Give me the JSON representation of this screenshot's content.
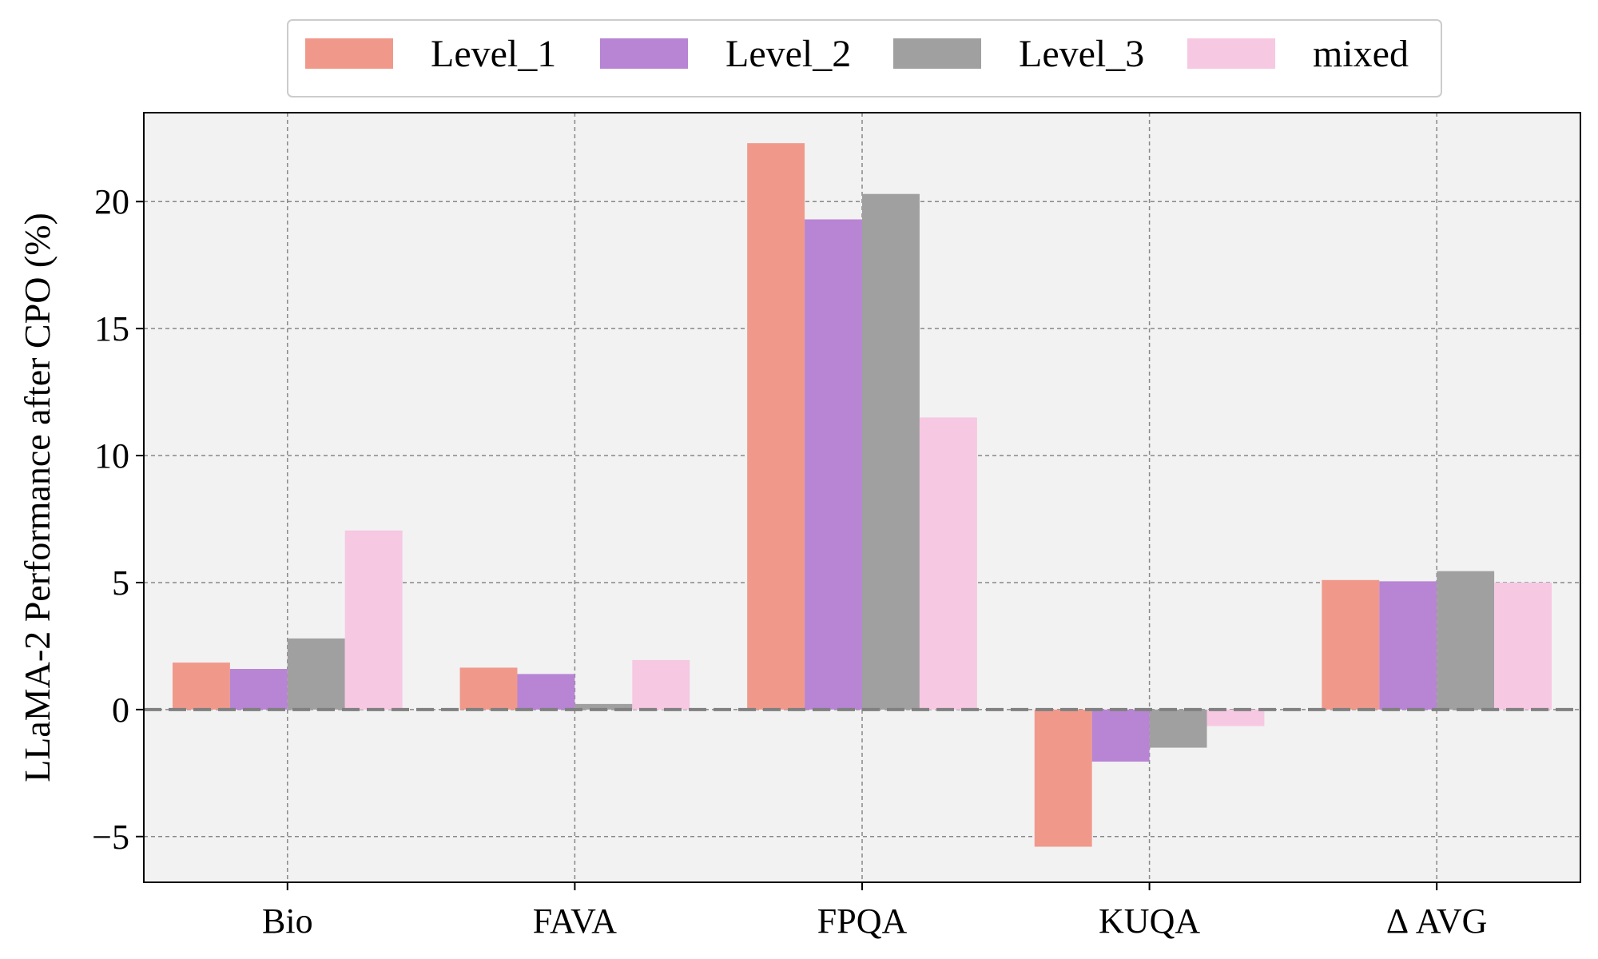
{
  "chart_data": {
    "type": "bar",
    "title": "",
    "xlabel": "",
    "ylabel": "LLaMA-2 Performance after CPO (%)",
    "categories": [
      "Bio",
      "FAVA",
      "FPQA",
      "KUQA",
      "Δ AVG"
    ],
    "ylim": [
      -6.8,
      23.5
    ],
    "yticks": [
      -5,
      0,
      5,
      10,
      15,
      20
    ],
    "ytick_labels": [
      "−5",
      "0",
      "5",
      "10",
      "15",
      "20"
    ],
    "grid": true,
    "zero_line": true,
    "legend_position": "top-center",
    "series": [
      {
        "name": "Level_1",
        "color": "#F0998B",
        "values": [
          1.85,
          1.65,
          22.3,
          -5.4,
          5.1
        ]
      },
      {
        "name": "Level_2",
        "color": "#B884D4",
        "values": [
          1.6,
          1.4,
          19.3,
          -2.05,
          5.05
        ]
      },
      {
        "name": "Level_3",
        "color": "#A0A0A0",
        "values": [
          2.8,
          0.22,
          20.3,
          -1.5,
          5.45
        ]
      },
      {
        "name": "mixed",
        "color": "#F6C8E2",
        "values": [
          7.05,
          1.95,
          11.5,
          -0.65,
          5.0
        ]
      }
    ]
  }
}
